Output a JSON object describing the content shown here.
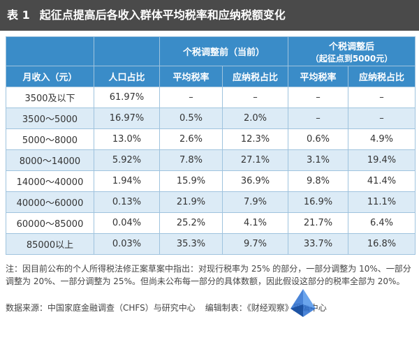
{
  "title": {
    "number": "表 1",
    "text": "起征点提高后各收入群体平均税率和应纳税额变化"
  },
  "table": {
    "groups": {
      "before": "个税调整前（当前）",
      "after_line1": "个税调整后",
      "after_line2": "（起征点到5000元）"
    },
    "headers": {
      "income": "月收入（元）",
      "population": "人口占比",
      "before_rate": "平均税率",
      "before_share": "应纳税占比",
      "after_rate": "平均税率",
      "after_share": "应纳税占比"
    },
    "rows": [
      [
        "3500及以下",
        "61.97%",
        "–",
        "–",
        "–",
        "–"
      ],
      [
        "3500～5000",
        "16.97%",
        "0.5%",
        "2.0%",
        "–",
        "–"
      ],
      [
        "5000～8000",
        "13.0%",
        "2.6%",
        "12.3%",
        "0.6%",
        "4.9%"
      ],
      [
        "8000～14000",
        "5.92%",
        "7.8%",
        "27.1%",
        "3.1%",
        "19.4%"
      ],
      [
        "14000～40000",
        "1.94%",
        "15.9%",
        "36.9%",
        "9.8%",
        "41.4%"
      ],
      [
        "40000～60000",
        "0.13%",
        "21.9%",
        "7.9%",
        "16.9%",
        "11.1%"
      ],
      [
        "60000～85000",
        "0.04%",
        "25.2%",
        "4.1%",
        "21.7%",
        "6.4%"
      ],
      [
        "85000以上",
        "0.03%",
        "35.3%",
        "9.7%",
        "33.7%",
        "16.8%"
      ]
    ]
  },
  "note": "注：因目前公布的个人所得税法修正案草案中指出：对现行税率为 25% 的部分，一部分调整为 10%、一部分调整为 20%、一部分调整为 25%。但尚未公布每一部分的具体数额，因此假设这部分的税率全部为 20%。",
  "source": {
    "text": "数据来源：中国家庭金融调查（CHFS）与研究中心",
    "editor": "编辑制表：《财经观察》采编中心"
  },
  "colors": {
    "title_bg": "#4a4a4a",
    "header_bg": "#3a8cc8",
    "row_alt_bg": "#dcebf6",
    "border": "#9fc3de"
  }
}
